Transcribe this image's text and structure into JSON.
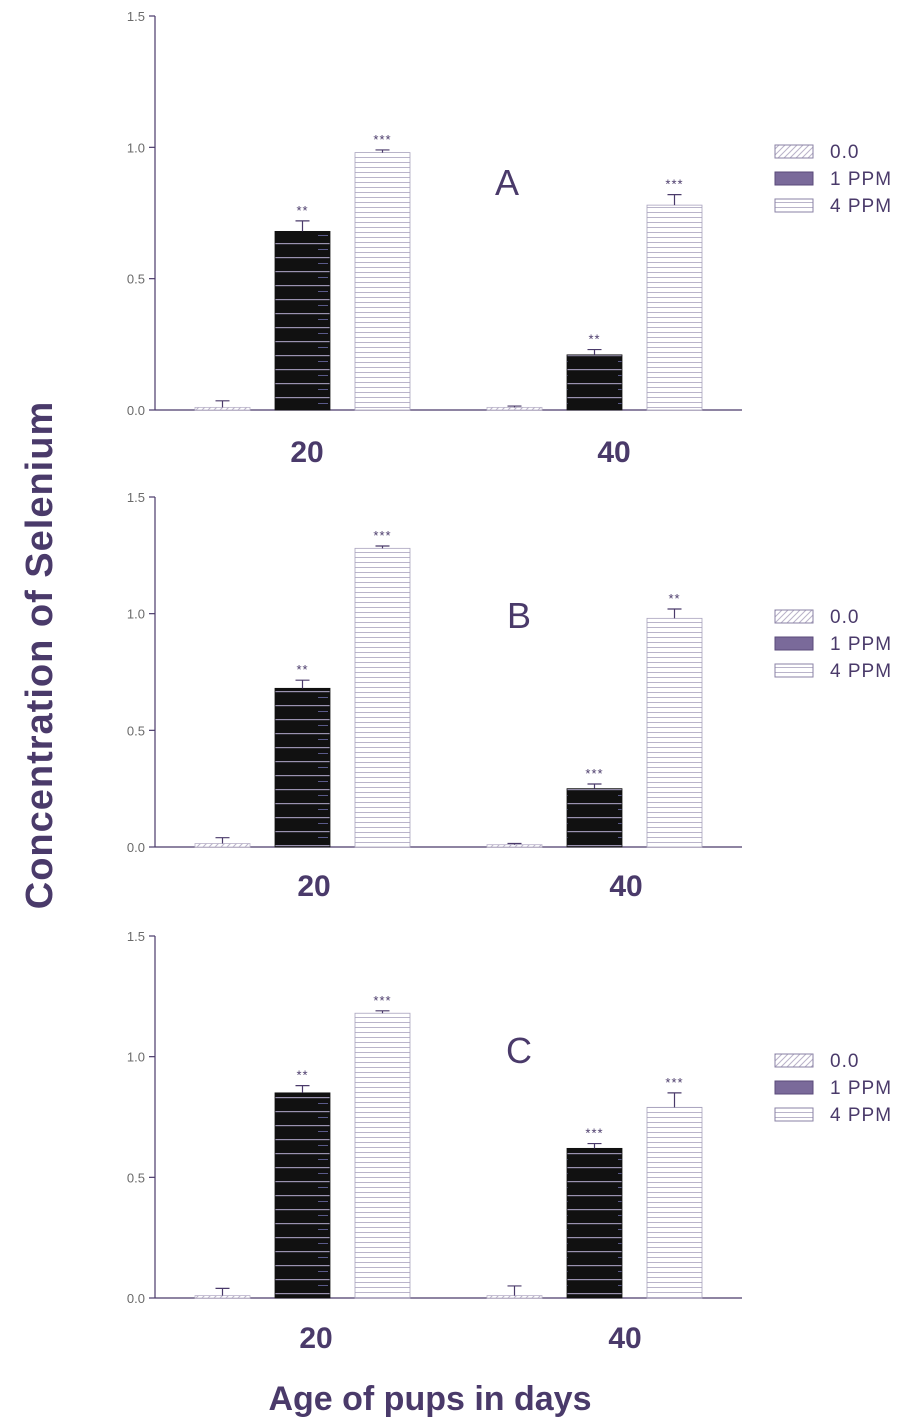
{
  "figure": {
    "ylabel": "Concentration   of   Selenium",
    "xlabel": "Age of pups in days"
  },
  "chart_data": [
    {
      "type": "bar",
      "panel_label": "A",
      "categories": [
        "20",
        "40"
      ],
      "ylim": [
        0,
        1.5
      ],
      "yticks": [
        "0.0",
        "0.5",
        "1.0",
        "1.5"
      ],
      "legend": [
        "0.0",
        "1 PPM",
        "4 PPM"
      ],
      "legend_placement": "right",
      "series": [
        {
          "name": "0.0",
          "values": [
            0.01,
            0.01
          ],
          "errors": [
            0.025,
            0.005
          ],
          "sig": [
            "",
            ""
          ]
        },
        {
          "name": "1 PPM",
          "values": [
            0.68,
            0.21
          ],
          "errors": [
            0.04,
            0.02
          ],
          "sig": [
            "**",
            "**"
          ]
        },
        {
          "name": "4 PPM",
          "values": [
            0.98,
            0.78
          ],
          "errors": [
            0.01,
            0.04
          ],
          "sig": [
            "***",
            "***"
          ]
        }
      ]
    },
    {
      "type": "bar",
      "panel_label": "B",
      "categories": [
        "20",
        "40"
      ],
      "ylim": [
        0,
        1.5
      ],
      "yticks": [
        "0.0",
        "0.5",
        "1.0",
        "1.5"
      ],
      "legend": [
        "0.0",
        "1 PPM",
        "4 PPM"
      ],
      "legend_placement": "right",
      "series": [
        {
          "name": "0.0",
          "values": [
            0.015,
            0.01
          ],
          "errors": [
            0.025,
            0.005
          ],
          "sig": [
            "",
            ""
          ]
        },
        {
          "name": "1 PPM",
          "values": [
            0.68,
            0.25
          ],
          "errors": [
            0.035,
            0.02
          ],
          "sig": [
            "**",
            "***"
          ]
        },
        {
          "name": "4 PPM",
          "values": [
            1.28,
            0.98
          ],
          "errors": [
            0.01,
            0.04
          ],
          "sig": [
            "***",
            "**"
          ]
        }
      ]
    },
    {
      "type": "bar",
      "panel_label": "C",
      "categories": [
        "20",
        "40"
      ],
      "ylim": [
        0,
        1.5
      ],
      "yticks": [
        "0.0",
        "0.5",
        "1.0",
        "1.5"
      ],
      "legend": [
        "0.0",
        "1 PPM",
        "4 PPM"
      ],
      "legend_placement": "right",
      "series": [
        {
          "name": "0.0",
          "values": [
            0.01,
            0.01
          ],
          "errors": [
            0.03,
            0.04
          ],
          "sig": [
            "",
            ""
          ]
        },
        {
          "name": "1 PPM",
          "values": [
            0.85,
            0.62
          ],
          "errors": [
            0.03,
            0.02
          ],
          "sig": [
            "**",
            "***"
          ]
        },
        {
          "name": "4 PPM",
          "values": [
            1.18,
            0.79
          ],
          "errors": [
            0.01,
            0.06
          ],
          "sig": [
            "***",
            "***"
          ]
        }
      ]
    }
  ]
}
